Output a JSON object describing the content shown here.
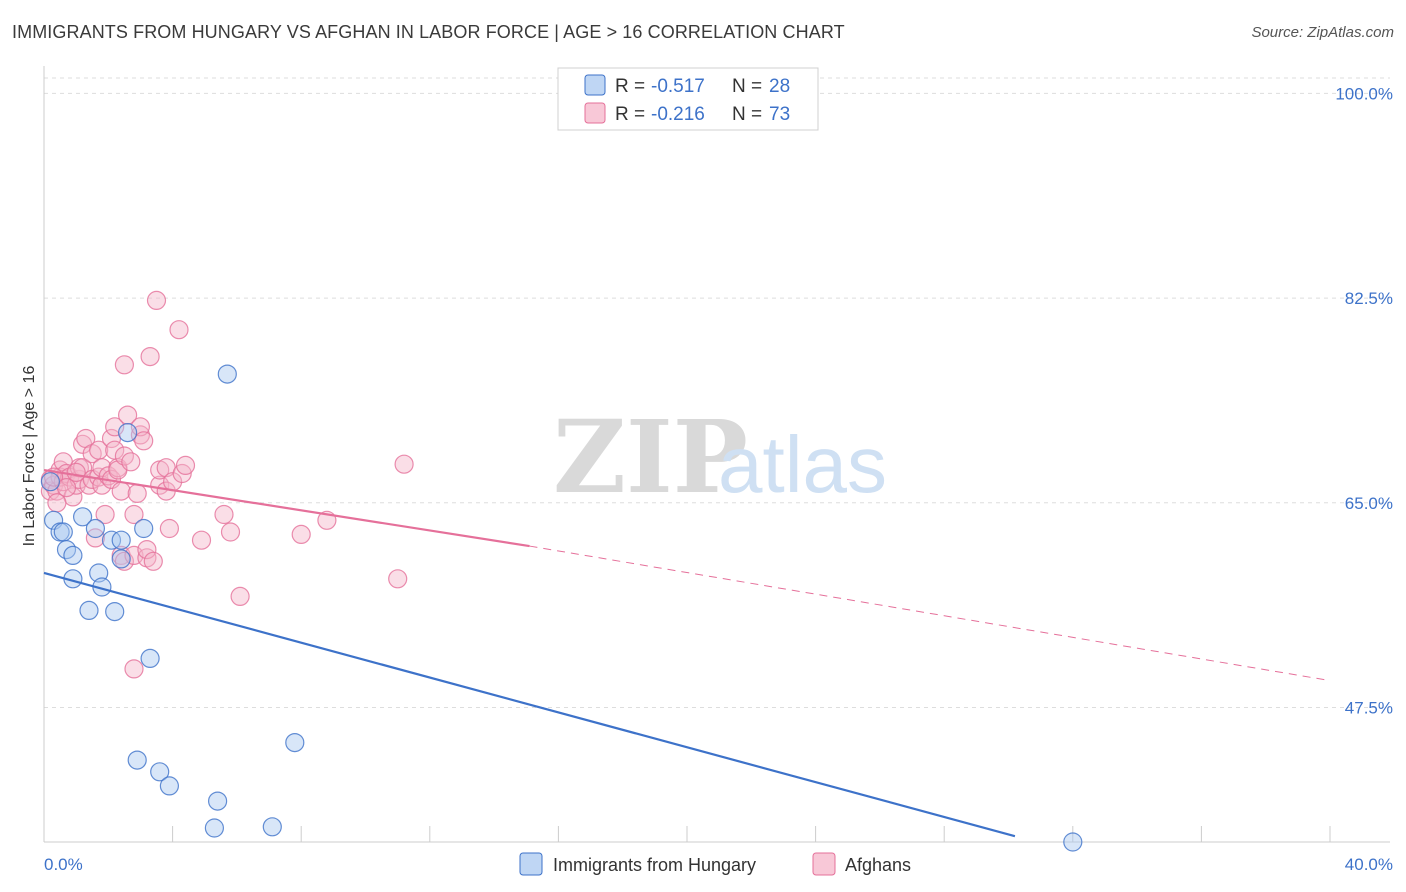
{
  "title": "IMMIGRANTS FROM HUNGARY VS AFGHAN IN LABOR FORCE | AGE > 16 CORRELATION CHART",
  "source": "Source: ZipAtlas.com",
  "watermark": {
    "zip": "ZIP",
    "atlas": "atlas"
  },
  "colors": {
    "blue": "#3d72c9",
    "blue_fill": "#a9c8f0",
    "pink": "#e5709a",
    "pink_fill": "#f5b5ca"
  },
  "chart_data": {
    "type": "scatter",
    "title": "IMMIGRANTS FROM HUNGARY VS AFGHAN IN LABOR FORCE | AGE > 16 CORRELATION CHART",
    "xlabel": "",
    "ylabel": "In Labor Force | Age > 16",
    "xlim": [
      0,
      40
    ],
    "ylim": [
      36,
      102
    ],
    "x_tick_labels": [
      "0.0%",
      "40.0%"
    ],
    "y_ticks": [
      47.5,
      65.0,
      82.5,
      100.0
    ],
    "y_tick_labels": [
      "47.5%",
      "65.0%",
      "82.5%",
      "100.0%"
    ],
    "grid": true,
    "legend_position": "top-center",
    "legend": [
      {
        "r_label": "R = ",
        "r_value": "-0.517",
        "n_label": "N = ",
        "n_value": "28"
      },
      {
        "r_label": "R = ",
        "r_value": "-0.216",
        "n_label": "N = ",
        "n_value": "73"
      }
    ],
    "series": [
      {
        "name": "Immigrants from Hungary",
        "color": "#3d72c9",
        "points": [
          [
            0.2,
            66.8
          ],
          [
            0.3,
            63.5
          ],
          [
            0.5,
            62.5
          ],
          [
            0.6,
            62.5
          ],
          [
            0.7,
            61.0
          ],
          [
            0.9,
            58.5
          ],
          [
            0.9,
            60.5
          ],
          [
            1.2,
            63.8
          ],
          [
            1.4,
            55.8
          ],
          [
            1.6,
            62.8
          ],
          [
            1.7,
            59.0
          ],
          [
            1.8,
            57.8
          ],
          [
            2.1,
            61.8
          ],
          [
            2.2,
            55.7
          ],
          [
            2.4,
            61.8
          ],
          [
            2.4,
            60.2
          ],
          [
            2.6,
            71.0
          ],
          [
            3.1,
            62.8
          ],
          [
            3.3,
            51.7
          ],
          [
            2.9,
            43.0
          ],
          [
            3.6,
            42.0
          ],
          [
            3.9,
            40.8
          ],
          [
            5.3,
            37.2
          ],
          [
            5.4,
            39.5
          ],
          [
            5.7,
            76.0
          ],
          [
            7.1,
            37.3
          ],
          [
            7.8,
            44.5
          ],
          [
            32.0,
            36.0
          ]
        ],
        "trend": {
          "x0": 0,
          "y0": 59.0,
          "x1": 30.2,
          "y1": 36.5,
          "dashed_to": null
        }
      },
      {
        "name": "Afghans",
        "color": "#e5709a",
        "points": [
          [
            0.2,
            67.0
          ],
          [
            0.2,
            66.0
          ],
          [
            0.3,
            66.5
          ],
          [
            0.4,
            66.0
          ],
          [
            0.5,
            67.8
          ],
          [
            0.5,
            67.2
          ],
          [
            0.6,
            68.5
          ],
          [
            0.6,
            66.8
          ],
          [
            0.7,
            67.5
          ],
          [
            0.8,
            67.2
          ],
          [
            0.9,
            65.5
          ],
          [
            1.0,
            66.5
          ],
          [
            1.1,
            67.0
          ],
          [
            1.1,
            68.0
          ],
          [
            1.2,
            70.0
          ],
          [
            1.2,
            68.0
          ],
          [
            1.3,
            70.5
          ],
          [
            1.4,
            66.5
          ],
          [
            1.5,
            67.0
          ],
          [
            1.5,
            69.2
          ],
          [
            1.6,
            62.0
          ],
          [
            1.7,
            67.2
          ],
          [
            1.7,
            69.5
          ],
          [
            1.8,
            68.0
          ],
          [
            1.8,
            66.5
          ],
          [
            1.9,
            64.0
          ],
          [
            2.0,
            67.3
          ],
          [
            2.1,
            67.0
          ],
          [
            2.1,
            70.5
          ],
          [
            2.2,
            69.5
          ],
          [
            2.2,
            71.5
          ],
          [
            2.3,
            68.0
          ],
          [
            2.3,
            67.8
          ],
          [
            2.4,
            66.0
          ],
          [
            2.4,
            60.5
          ],
          [
            2.5,
            76.8
          ],
          [
            2.5,
            69.0
          ],
          [
            2.5,
            60.0
          ],
          [
            2.6,
            72.5
          ],
          [
            2.7,
            68.5
          ],
          [
            2.8,
            64.0
          ],
          [
            2.8,
            60.5
          ],
          [
            2.9,
            65.8
          ],
          [
            3.0,
            70.8
          ],
          [
            3.0,
            71.5
          ],
          [
            3.1,
            70.3
          ],
          [
            3.2,
            60.3
          ],
          [
            3.2,
            61.0
          ],
          [
            3.3,
            77.5
          ],
          [
            3.4,
            60.0
          ],
          [
            3.5,
            82.3
          ],
          [
            3.6,
            66.5
          ],
          [
            3.6,
            67.8
          ],
          [
            3.8,
            68.0
          ],
          [
            3.8,
            66.0
          ],
          [
            3.9,
            62.8
          ],
          [
            4.0,
            66.8
          ],
          [
            4.2,
            79.8
          ],
          [
            4.3,
            67.5
          ],
          [
            4.4,
            68.2
          ],
          [
            4.9,
            61.8
          ],
          [
            5.6,
            64.0
          ],
          [
            5.8,
            62.5
          ],
          [
            6.1,
            57.0
          ],
          [
            8.0,
            62.3
          ],
          [
            8.8,
            63.5
          ],
          [
            11.0,
            58.5
          ],
          [
            11.2,
            68.3
          ],
          [
            2.8,
            50.8
          ],
          [
            0.3,
            67.2
          ],
          [
            0.4,
            65.0
          ],
          [
            1.0,
            67.6
          ],
          [
            0.7,
            66.3
          ]
        ],
        "trend": {
          "x0": 0,
          "y0": 67.8,
          "x1": 15.1,
          "y1": 61.3,
          "dashed_to": {
            "x": 40,
            "y": 49.8
          }
        }
      }
    ]
  }
}
